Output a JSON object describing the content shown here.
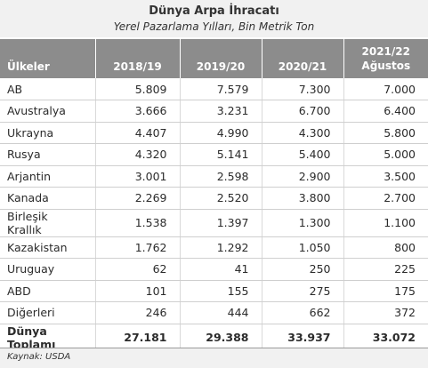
{
  "title": "Dünya Arpa İhracatı",
  "subtitle": "Yerel Pazarlama Yılları, Bin Metrik Ton",
  "columns": [
    "Ülkeler",
    "2018/19",
    "2019/20",
    "2020/21",
    "2021/22",
    "Ağustos"
  ],
  "rows": [
    [
      "AB",
      "5.809",
      "7.579",
      "7.300",
      "7.000"
    ],
    [
      "Avustralya",
      "3.666",
      "3.231",
      "6.700",
      "6.400"
    ],
    [
      "Ukrayna",
      "4.407",
      "4.990",
      "4.300",
      "5.800"
    ],
    [
      "Rusya",
      "4.320",
      "5.141",
      "5.400",
      "5.000"
    ],
    [
      "Arjantin",
      "3.001",
      "2.598",
      "2.900",
      "3.500"
    ],
    [
      "Kanada",
      "2.269",
      "2.520",
      "3.800",
      "2.700"
    ],
    [
      "Birleşik Krallık",
      "1.538",
      "1.397",
      "1.300",
      "1.100"
    ],
    [
      "Kazakistan",
      "1.762",
      "1.292",
      "1.050",
      "800"
    ],
    [
      "Uruguay",
      "62",
      "41",
      "250",
      "225"
    ],
    [
      "ABD",
      "101",
      "155",
      "275",
      "175"
    ],
    [
      "Diğerleri",
      "246",
      "444",
      "662",
      "372"
    ],
    [
      "Dünya Toplamı",
      "27.181",
      "29.388",
      "33.937",
      "33.072"
    ]
  ],
  "source": "Kaynak: USDA"
}
